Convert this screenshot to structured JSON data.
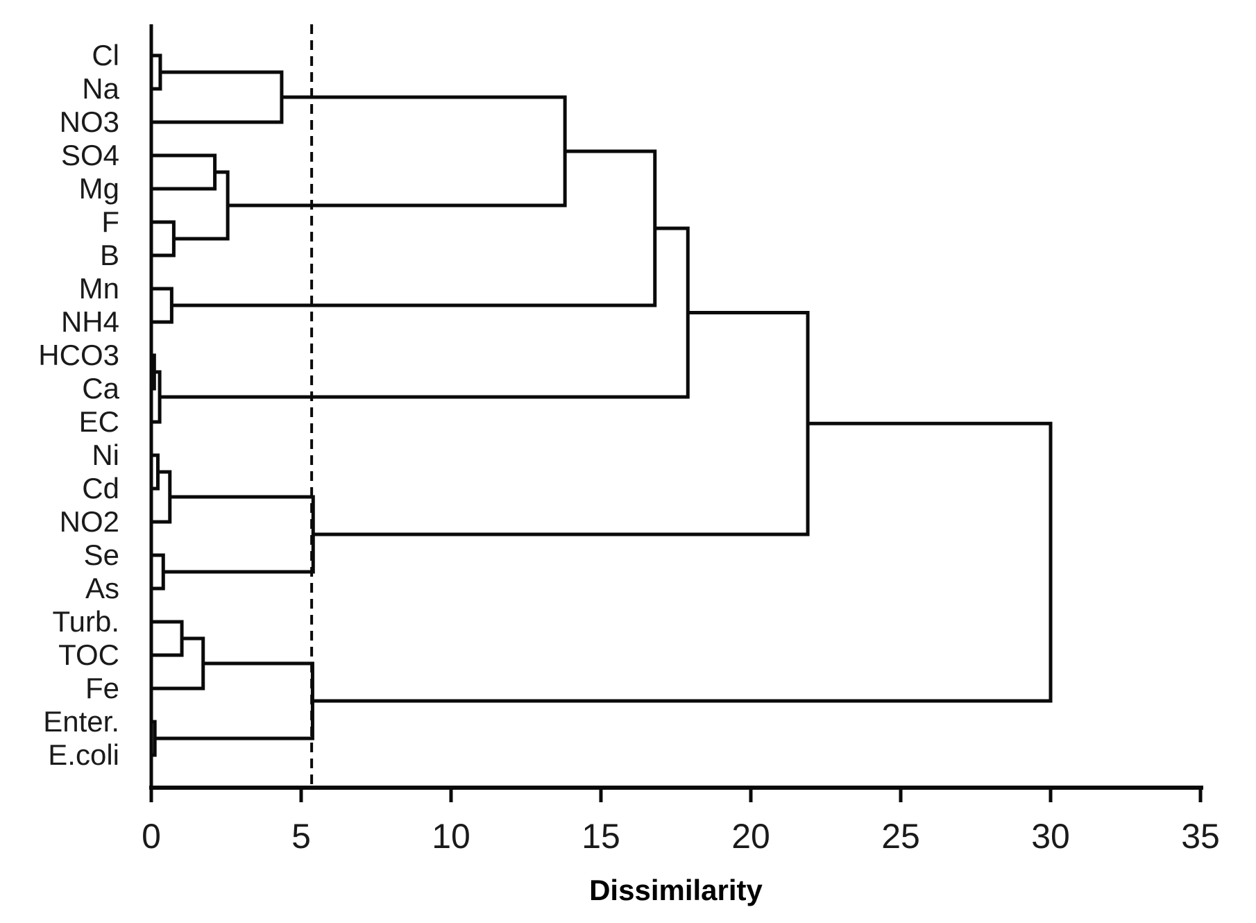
{
  "chart_data": {
    "type": "dendrogram",
    "orientation": "horizontal",
    "title": "",
    "xlabel": "Dissimilarity",
    "x_ticks": [
      0,
      5,
      10,
      15,
      20,
      25,
      30,
      35
    ],
    "xlim": [
      0,
      35
    ],
    "grid": false,
    "line_color": "#0a0a0a",
    "threshold_line": {
      "value": 5.35,
      "style": "dashed",
      "color": "#0a0a0a"
    },
    "leaves": [
      "Cl",
      "Na",
      "NO3",
      "SO4",
      "Mg",
      "F",
      "B",
      "Mn",
      "NH4",
      "HCO3",
      "Ca",
      "EC",
      "Ni",
      "Cd",
      "NO2",
      "Se",
      "As",
      "Turb.",
      "TOC",
      "Fe",
      "Enter.",
      "E.coli"
    ],
    "merges": [
      {
        "id": "m1",
        "children": [
          "Cl",
          "Na"
        ],
        "height": 0.3
      },
      {
        "id": "m2",
        "children": [
          "m1",
          "NO3"
        ],
        "height": 4.35
      },
      {
        "id": "m3",
        "children": [
          "SO4",
          "Mg"
        ],
        "height": 2.12
      },
      {
        "id": "m4",
        "children": [
          "F",
          "B"
        ],
        "height": 0.75
      },
      {
        "id": "m5",
        "children": [
          "m3",
          "m4"
        ],
        "height": 2.55
      },
      {
        "id": "m6",
        "children": [
          "m2",
          "m5"
        ],
        "height": 13.8
      },
      {
        "id": "m7",
        "children": [
          "Mn",
          "NH4"
        ],
        "height": 0.68
      },
      {
        "id": "m8",
        "children": [
          "m6",
          "m7"
        ],
        "height": 16.8
      },
      {
        "id": "m9",
        "children": [
          "HCO3",
          "Ca"
        ],
        "height": 0.1
      },
      {
        "id": "m10",
        "children": [
          "m9",
          "EC"
        ],
        "height": 0.28
      },
      {
        "id": "m11",
        "children": [
          "m8",
          "m10"
        ],
        "height": 17.9
      },
      {
        "id": "m12",
        "children": [
          "Ni",
          "Cd"
        ],
        "height": 0.22
      },
      {
        "id": "m13",
        "children": [
          "m12",
          "NO2"
        ],
        "height": 0.62
      },
      {
        "id": "m14",
        "children": [
          "Se",
          "As"
        ],
        "height": 0.4
      },
      {
        "id": "m15",
        "children": [
          "m13",
          "m14"
        ],
        "height": 5.4
      },
      {
        "id": "m16",
        "children": [
          "m11",
          "m15"
        ],
        "height": 21.9
      },
      {
        "id": "m17",
        "children": [
          "Turb.",
          "TOC"
        ],
        "height": 1.02
      },
      {
        "id": "m18",
        "children": [
          "m17",
          "Fe"
        ],
        "height": 1.73
      },
      {
        "id": "m19",
        "children": [
          "Enter.",
          "E.coli"
        ],
        "height": 0.12
      },
      {
        "id": "m20",
        "children": [
          "m18",
          "m19"
        ],
        "height": 5.38
      },
      {
        "id": "m21",
        "children": [
          "m16",
          "m20"
        ],
        "height": 30.0
      }
    ]
  }
}
